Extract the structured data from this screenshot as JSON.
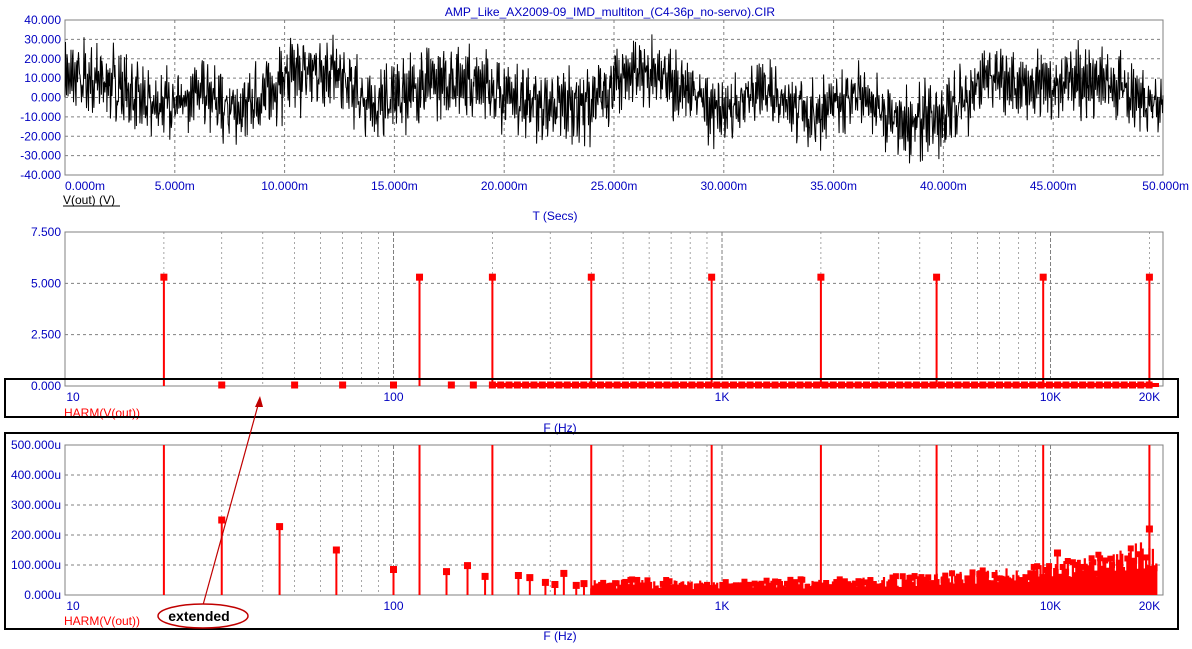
{
  "window": {
    "title": "AMP_Like_AX2009-09_IMD_multiton_(C4-36p_no-servo).CIR"
  },
  "colors": {
    "axis_text": "#0000c0",
    "trace_time": "#000000",
    "trace_harm": "#ff0000",
    "grid": "#808080",
    "highlight_box": "#000000",
    "annotation": "#c00000"
  },
  "annotation": {
    "label": "extended"
  },
  "chart_data": [
    {
      "id": "time",
      "type": "line",
      "title": "AMP_Like_AX2009-09_IMD_multiton_(C4-36p_no-servo).CIR",
      "trace_label": "V(out) (V)",
      "xlabel": "T (Secs)",
      "x_scale": "linear",
      "xlim": [
        0,
        0.05
      ],
      "ylim": [
        -40,
        40
      ],
      "grid": true,
      "y_ticks": [
        "40.000",
        "30.000",
        "20.000",
        "10.000",
        "0.000",
        "-10.000",
        "-20.000",
        "-30.000",
        "-40.000"
      ],
      "x_ticks": [
        "0.000m",
        "5.000m",
        "10.000m",
        "15.000m",
        "20.000m",
        "25.000m",
        "30.000m",
        "35.000m",
        "40.000m",
        "45.000m",
        "50.000m"
      ],
      "envelope": {
        "description": "multitone signal, noise-like, peaks approx ±30 V",
        "x_ms": [
          0,
          2,
          4,
          6,
          8,
          10,
          12,
          14,
          16,
          18,
          20,
          22,
          24,
          26,
          28,
          30,
          32,
          34,
          36,
          38,
          40,
          42,
          44,
          46,
          48,
          50
        ],
        "center_V": [
          10,
          8,
          -5,
          2,
          -8,
          10,
          15,
          -5,
          5,
          10,
          2,
          -5,
          -3,
          15,
          5,
          -8,
          5,
          -10,
          2,
          -15,
          -10,
          10,
          5,
          10,
          5,
          -5
        ],
        "amplitude_V": [
          18,
          20,
          16,
          18,
          18,
          20,
          18,
          18,
          20,
          18,
          18,
          18,
          20,
          18,
          18,
          18,
          16,
          18,
          18,
          18,
          20,
          18,
          18,
          20,
          18,
          16
        ]
      }
    },
    {
      "id": "harm_main",
      "type": "bar",
      "trace_label": "HARM(V(out))",
      "xlabel": "F (Hz)",
      "x_scale": "log",
      "xlim": [
        10,
        22000
      ],
      "ylim": [
        0,
        7.5
      ],
      "grid": true,
      "y_ticks": [
        "7.500",
        "5.000",
        "2.500",
        "0.000"
      ],
      "x_ticks": [
        "10",
        "100",
        "1K",
        "10K",
        "20K"
      ],
      "x_tick_values": [
        10,
        100,
        1000,
        10000,
        20000
      ],
      "tones_hz": [
        20,
        120,
        200,
        400,
        930,
        2000,
        4500,
        9500,
        20000
      ],
      "tone_value": 5.3,
      "small_hz": [
        30,
        50,
        70,
        100,
        150,
        175
      ]
    },
    {
      "id": "harm_zoom",
      "type": "bar",
      "trace_label": "HARM(V(out))",
      "xlabel": "F (Hz)",
      "x_scale": "log",
      "xlim": [
        10,
        22000
      ],
      "ylim": [
        0,
        0.0005
      ],
      "grid": true,
      "y_ticks": [
        "500.000u",
        "400.000u",
        "300.000u",
        "200.000u",
        "100.000u",
        "0.000u"
      ],
      "x_ticks": [
        "10",
        "100",
        "1K",
        "10K",
        "20K"
      ],
      "x_tick_values": [
        10,
        100,
        1000,
        10000,
        20000
      ],
      "tones_hz": [
        20,
        120,
        200,
        400,
        930,
        2000,
        4500,
        9500,
        20000
      ],
      "spurs": [
        {
          "hz": 30,
          "v": 0.00025
        },
        {
          "hz": 45,
          "v": 0.000228
        },
        {
          "hz": 67,
          "v": 0.00015
        },
        {
          "hz": 100,
          "v": 8.5e-05
        },
        {
          "hz": 145,
          "v": 7.8e-05
        },
        {
          "hz": 168,
          "v": 9.8e-05
        },
        {
          "hz": 190,
          "v": 6.2e-05
        },
        {
          "hz": 240,
          "v": 6.5e-05
        },
        {
          "hz": 260,
          "v": 5.8e-05
        },
        {
          "hz": 290,
          "v": 4.2e-05
        },
        {
          "hz": 310,
          "v": 3.5e-05
        },
        {
          "hz": 330,
          "v": 7.2e-05
        },
        {
          "hz": 360,
          "v": 3.2e-05
        },
        {
          "hz": 380,
          "v": 3.8e-05
        },
        {
          "hz": 430,
          "v": 3.2e-05
        }
      ],
      "floor": {
        "description": "dense noise floor of small spurs rising toward 20 kHz",
        "from_hz": 400,
        "to_hz": 21000,
        "level_v": [
          4e-05,
          3.5e-05,
          4e-05,
          5e-05,
          7e-05,
          0.0001,
          0.00014
        ],
        "level_at_hz": [
          400,
          1000,
          2000,
          4000,
          8000,
          14000,
          20000
        ],
        "peak_hz": [
          10500,
          20000
        ],
        "peak_v": [
          0.00014,
          0.00022
        ]
      }
    }
  ]
}
